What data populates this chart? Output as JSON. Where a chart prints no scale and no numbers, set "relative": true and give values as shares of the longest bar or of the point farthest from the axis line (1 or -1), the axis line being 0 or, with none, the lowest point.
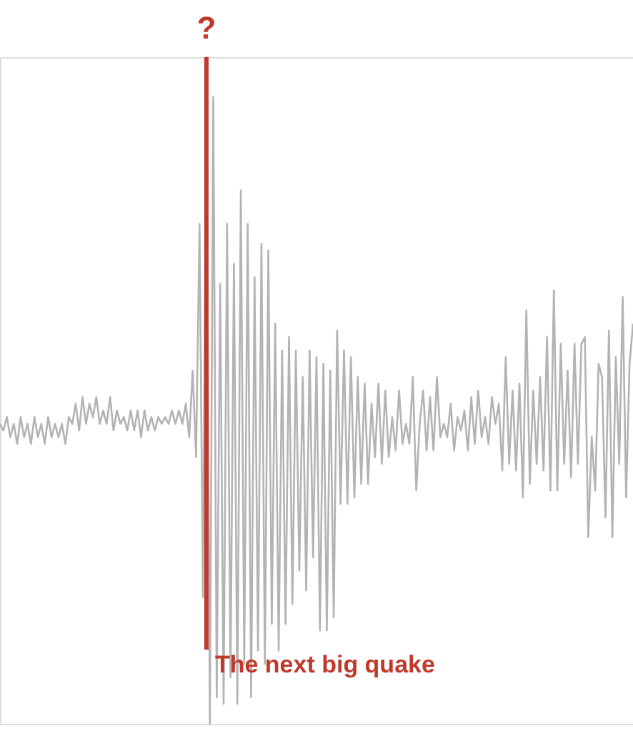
{
  "chart_data": {
    "type": "line",
    "relative": true,
    "categories": [
      null,
      null,
      null,
      null,
      null,
      null,
      null,
      null,
      null,
      null,
      null,
      null,
      null,
      null,
      null,
      null,
      null,
      null,
      null,
      null,
      null,
      null,
      null,
      null,
      null,
      null,
      null,
      null,
      null,
      null,
      null,
      null,
      null,
      null,
      null,
      null,
      null,
      null,
      null,
      null,
      null,
      null,
      null,
      null,
      null,
      null,
      null,
      null,
      null,
      null,
      null,
      null,
      null,
      null,
      null,
      null,
      null,
      null,
      null,
      null,
      null,
      null,
      null,
      null,
      null,
      null,
      null,
      null,
      null,
      null,
      null,
      null,
      null,
      null,
      null,
      null,
      null,
      null,
      null,
      null,
      null,
      null,
      null,
      null,
      null,
      null,
      null,
      null,
      null,
      null,
      null,
      null,
      null,
      null,
      null,
      null,
      null,
      null,
      null,
      null,
      null,
      null,
      null,
      null,
      null,
      null,
      null,
      null,
      null,
      null,
      null,
      null,
      null,
      null,
      null,
      null,
      null,
      null,
      null,
      null,
      null,
      null,
      null,
      null,
      null,
      null,
      null,
      null,
      null,
      null,
      null,
      null,
      null,
      null,
      null,
      null,
      null,
      null,
      null,
      null,
      null,
      null,
      null,
      null,
      null,
      null,
      null,
      null,
      null,
      null,
      null,
      null,
      null,
      null,
      null,
      null,
      null,
      null,
      null,
      null,
      null,
      null,
      null,
      null,
      null,
      null,
      null,
      null,
      null,
      null,
      null,
      null,
      null,
      null,
      null,
      null,
      null,
      null,
      null,
      null,
      null,
      null,
      null,
      null,
      null
    ],
    "series": [
      {
        "color": "#b3b3b3",
        "values": [
          0.45,
          0.44,
          0.46,
          0.43,
          0.45,
          0.42,
          0.46,
          0.43,
          0.45,
          0.42,
          0.46,
          0.43,
          0.45,
          0.42,
          0.46,
          0.43,
          0.45,
          0.43,
          0.45,
          0.42,
          0.46,
          0.45,
          0.48,
          0.44,
          0.49,
          0.45,
          0.48,
          0.46,
          0.49,
          0.45,
          0.47,
          0.45,
          0.49,
          0.44,
          0.47,
          0.45,
          0.46,
          0.44,
          0.47,
          0.44,
          0.47,
          0.43,
          0.47,
          0.44,
          0.46,
          0.44,
          0.46,
          0.45,
          0.46,
          0.45,
          0.47,
          0.45,
          0.47,
          0.45,
          0.48,
          0.43,
          0.53,
          0.4,
          0.75,
          0.19,
          1.0,
          0.0,
          0.94,
          0.04,
          0.66,
          0.03,
          0.75,
          0.07,
          0.69,
          0.03,
          0.8,
          0.09,
          0.75,
          0.04,
          0.67,
          0.11,
          0.72,
          0.09,
          0.71,
          0.15,
          0.6,
          0.11,
          0.56,
          0.15,
          0.58,
          0.18,
          0.56,
          0.23,
          0.52,
          0.2,
          0.56,
          0.25,
          0.55,
          0.14,
          0.54,
          0.14,
          0.53,
          0.16,
          0.59,
          0.33,
          0.56,
          0.33,
          0.55,
          0.34,
          0.52,
          0.36,
          0.51,
          0.36,
          0.48,
          0.4,
          0.51,
          0.39,
          0.5,
          0.4,
          0.46,
          0.41,
          0.5,
          0.42,
          0.45,
          0.42,
          0.52,
          0.35,
          0.45,
          0.5,
          0.41,
          0.49,
          0.41,
          0.52,
          0.43,
          0.45,
          0.43,
          0.48,
          0.41,
          0.46,
          0.44,
          0.47,
          0.41,
          0.49,
          0.42,
          0.5,
          0.43,
          0.46,
          0.42,
          0.49,
          0.45,
          0.48,
          0.38,
          0.55,
          0.39,
          0.5,
          0.38,
          0.51,
          0.34,
          0.62,
          0.36,
          0.5,
          0.39,
          0.52,
          0.38,
          0.58,
          0.35,
          0.65,
          0.35,
          0.57,
          0.39,
          0.53,
          0.37,
          0.57,
          0.39,
          0.57,
          0.58,
          0.28,
          0.43,
          0.35,
          0.54,
          0.52,
          0.31,
          0.59,
          0.28,
          0.55,
          0.39,
          0.64,
          0.34,
          0.54,
          0.6
        ]
      }
    ],
    "ref_lines": [
      {
        "axis": "x",
        "label": "The next big quake",
        "color": "#c0392b"
      }
    ],
    "annotations": [
      "?"
    ]
  }
}
